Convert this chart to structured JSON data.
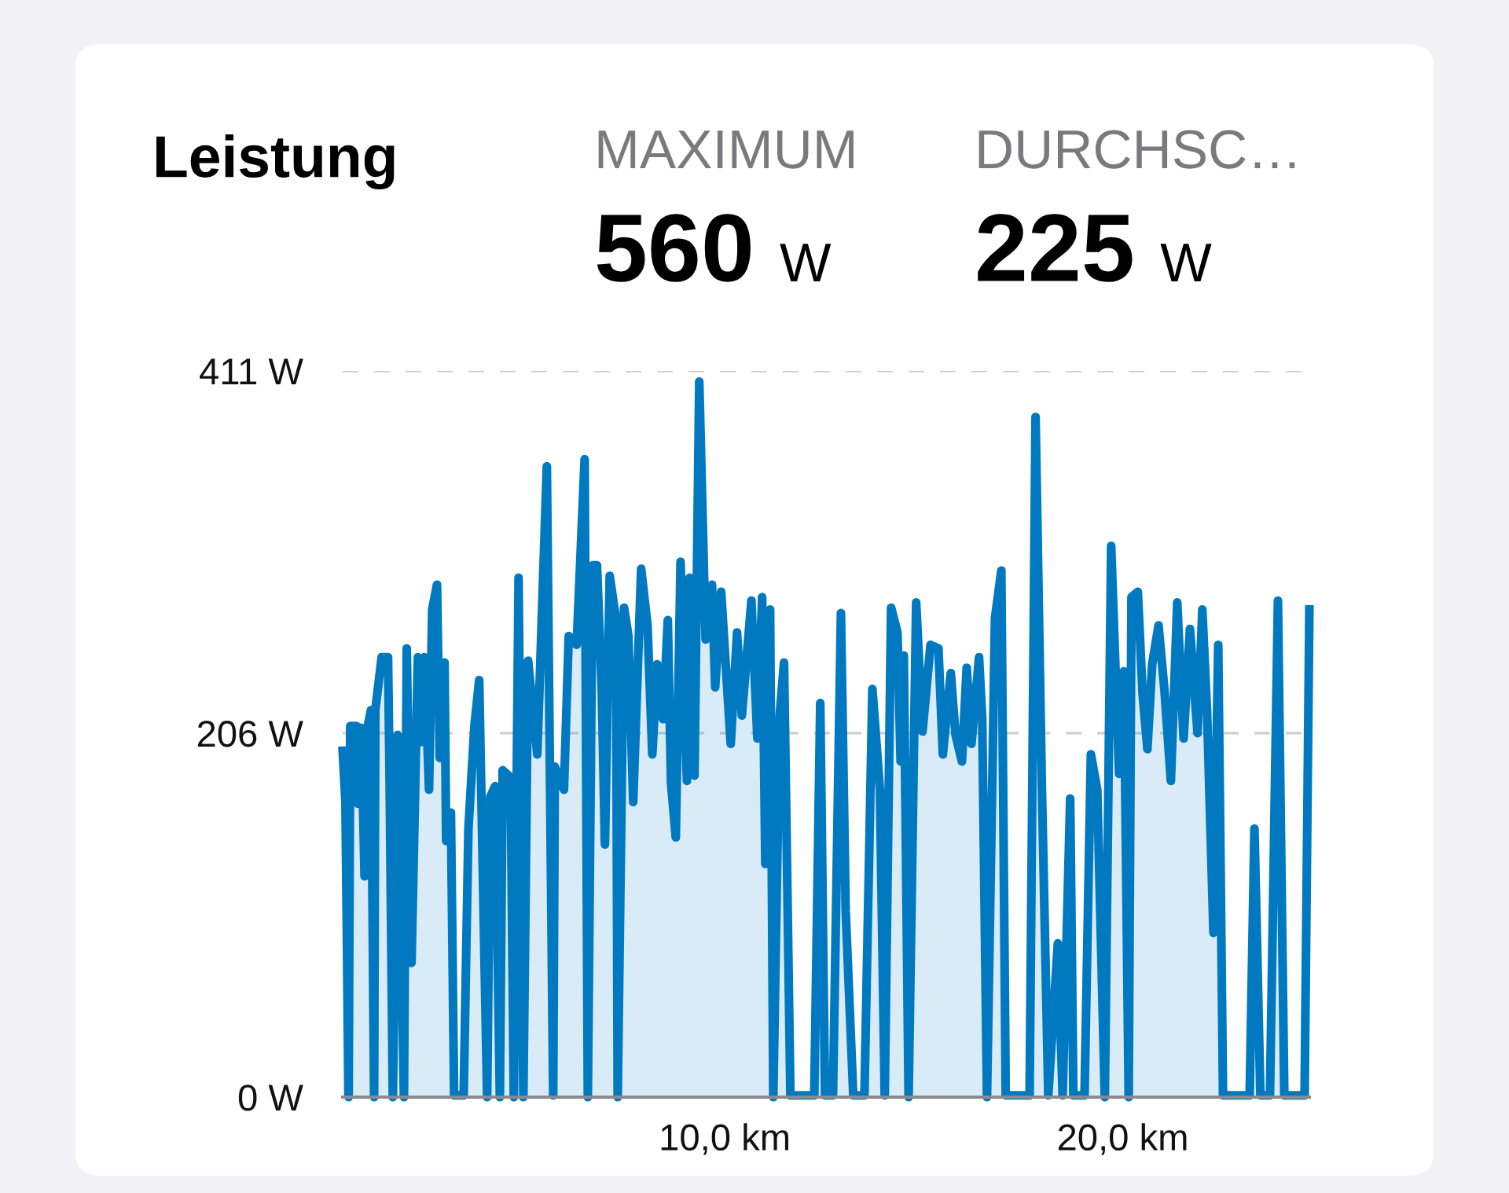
{
  "chart_data": {
    "type": "area",
    "title": "Leistung",
    "annotations": [
      "MAXIMUM",
      "560 W",
      "DURCHSC…",
      "225 W"
    ],
    "series": [
      {
        "color": "#0079c1",
        "x": [
          0.4,
          0.47,
          0.55,
          0.59,
          0.75,
          0.79,
          0.87,
          0.95,
          0.99,
          1.11,
          1.19,
          1.22,
          1.38,
          1.54,
          1.58,
          1.66,
          1.78,
          1.94,
          2.01,
          2.13,
          2.29,
          2.37,
          2.45,
          2.57,
          2.65,
          2.77,
          2.84,
          2.96,
          3.0,
          3.12,
          3.2,
          3.44,
          3.56,
          3.71,
          3.83,
          4.03,
          4.11,
          4.23,
          4.35,
          4.42,
          4.62,
          4.7,
          4.82,
          4.94,
          5.06,
          5.29,
          5.53,
          5.69,
          5.73,
          5.96,
          6.08,
          6.28,
          6.48,
          6.56,
          6.68,
          6.79,
          6.91,
          6.99,
          7.11,
          7.27,
          7.31,
          7.47,
          7.58,
          7.7,
          7.9,
          8.06,
          8.18,
          8.3,
          8.45,
          8.57,
          8.65,
          8.77,
          8.89,
          9.05,
          9.12,
          9.24,
          9.36,
          9.52,
          9.68,
          9.76,
          9.91,
          10.15,
          10.31,
          10.43,
          10.67,
          10.82,
          10.94,
          11.02,
          11.14,
          11.22,
          11.38,
          11.49,
          11.65,
          12.25,
          12.4,
          12.52,
          12.72,
          12.92,
          13.04,
          13.23,
          13.51,
          13.71,
          13.9,
          14.02,
          14.18,
          14.34,
          14.42,
          14.5,
          14.62,
          14.81,
          14.97,
          15.17,
          15.37,
          15.48,
          15.68,
          15.8,
          15.96,
          16.08,
          16.2,
          16.39,
          16.47,
          16.59,
          16.79,
          16.95,
          17.06,
          17.66,
          17.81,
          17.97,
          18.13,
          18.37,
          18.49,
          18.68,
          18.76,
          19.04,
          19.2,
          19.36,
          19.55,
          19.71,
          19.91,
          20.03,
          20.15,
          20.22,
          20.38,
          20.5,
          20.62,
          20.74,
          20.9,
          21.05,
          21.21,
          21.37,
          21.53,
          21.69,
          21.88,
          22.0,
          22.12,
          22.28,
          22.4,
          22.52,
          23.19,
          23.31,
          23.46,
          23.7,
          23.9,
          24.06,
          24.57,
          24.69
        ],
        "values": [
          196,
          167,
          0,
          210,
          210,
          166,
          209,
          125,
          205,
          219,
          0,
          219,
          249,
          249,
          179,
          0,
          205,
          0,
          254,
          76,
          249,
          201,
          249,
          174,
          276,
          290,
          192,
          246,
          145,
          161,
          1,
          1,
          152,
          210,
          236,
          0,
          170,
          176,
          0,
          185,
          181,
          0,
          294,
          0,
          247,
          194,
          357,
          1,
          187,
          174,
          261,
          256,
          361,
          0,
          301,
          301,
          231,
          143,
          295,
          270,
          0,
          277,
          261,
          167,
          299,
          267,
          194,
          245,
          214,
          270,
          178,
          147,
          303,
          179,
          294,
          182,
          405,
          259,
          290,
          232,
          286,
          200,
          263,
          216,
          281,
          203,
          283,
          132,
          276,
          0,
          216,
          246,
          1,
          1,
          223,
          1,
          1,
          274,
          105,
          1,
          1,
          231,
          174,
          1,
          277,
          263,
          190,
          250,
          0,
          280,
          207,
          256,
          254,
          194,
          240,
          205,
          190,
          243,
          200,
          249,
          214,
          0,
          271,
          298,
          1,
          1,
          385,
          174,
          1,
          87,
          1,
          169,
          1,
          1,
          194,
          174,
          0,
          312,
          183,
          241,
          0,
          283,
          286,
          228,
          197,
          245,
          267,
          230,
          179,
          280,
          203,
          265,
          206,
          276,
          218,
          93,
          256,
          1,
          1,
          152,
          1,
          1,
          281,
          1,
          1,
          276
        ]
      }
    ],
    "xlim": [
      0.4,
      24.69
    ],
    "xticks": [
      {
        "value": 10,
        "label": "10,0 km"
      },
      {
        "value": 20,
        "label": "20,0 km"
      }
    ],
    "ylim": [
      0,
      411
    ],
    "yticks": [
      {
        "value": 0,
        "label": "0 W"
      },
      {
        "value": 206,
        "label": "206 W"
      },
      {
        "value": 411,
        "label": "411 W"
      }
    ],
    "grid": "y",
    "legend": false
  }
}
